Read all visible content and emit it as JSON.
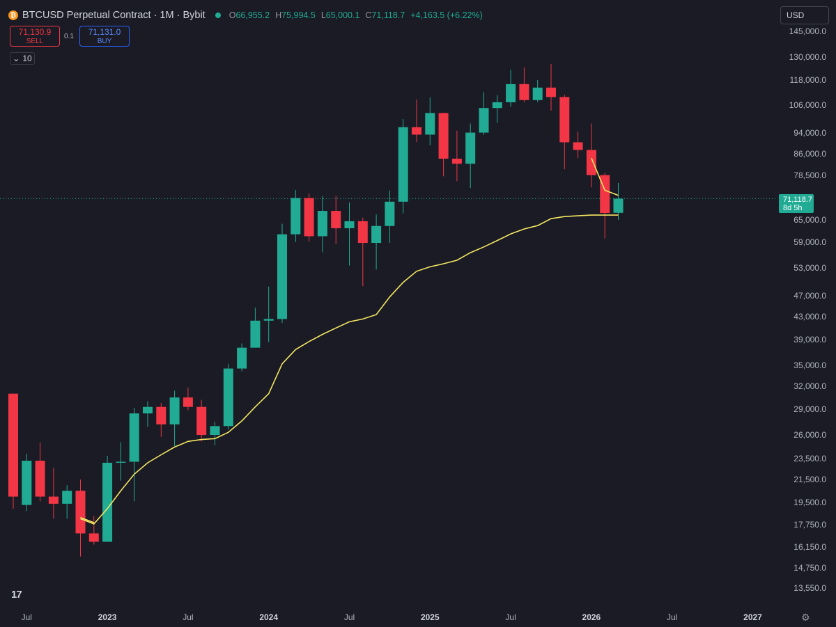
{
  "header": {
    "title": "BTCUSD Perpetual Contract · 1M · Bybit",
    "ohlc": [
      {
        "k": "O",
        "v": "66,955.2"
      },
      {
        "k": "H",
        "v": "75,994.5"
      },
      {
        "k": "L",
        "v": "65,000.1"
      },
      {
        "k": "C",
        "v": "71,118.7"
      }
    ],
    "change": "+4,163.5 (+6.22%)",
    "coin_glyph": "₿",
    "status_icon": "live-dot-icon"
  },
  "trade": {
    "sell_price": "71,130.9",
    "sell_label": "SELL",
    "spread": "0.1",
    "buy_price": "71,131.0",
    "buy_label": "BUY"
  },
  "indicators": {
    "toggle_icon": "chevron-down-icon",
    "count": "10"
  },
  "currency": "USD",
  "last_price": {
    "price": "71,118.7",
    "countdown": "8d 5h"
  },
  "logo": "17",
  "colors": {
    "up": "#22ab94",
    "down": "#f23645",
    "ma": "#f5e663",
    "bg": "#1a1b24"
  },
  "chart_data": {
    "type": "candlestick",
    "scale": "log",
    "y_ticks": [
      145000,
      130000,
      118000,
      106000,
      94000,
      86000,
      78500,
      65000,
      59000,
      53000,
      47000,
      43000,
      39000,
      35000,
      32000,
      29000,
      26000,
      23500,
      21500,
      19500,
      17750,
      16150,
      14750,
      13550
    ],
    "x_ticks": [
      {
        "label": "Jul",
        "date": "2022-07",
        "year": false
      },
      {
        "label": "2023",
        "date": "2023-01",
        "year": true
      },
      {
        "label": "Jul",
        "date": "2023-07",
        "year": false
      },
      {
        "label": "2024",
        "date": "2024-01",
        "year": true
      },
      {
        "label": "Jul",
        "date": "2024-07",
        "year": false
      },
      {
        "label": "2025",
        "date": "2025-01",
        "year": true
      },
      {
        "label": "Jul",
        "date": "2025-07",
        "year": false
      },
      {
        "label": "2026",
        "date": "2026-01",
        "year": true
      },
      {
        "label": "Jul",
        "date": "2026-07",
        "year": false
      },
      {
        "label": "2027",
        "date": "2027-01",
        "year": true
      }
    ],
    "candles": [
      {
        "d": "2022-06",
        "o": 31000,
        "h": 31000,
        "l": 19000,
        "c": 20000
      },
      {
        "d": "2022-07",
        "o": 19300,
        "h": 24000,
        "l": 18800,
        "c": 23300
      },
      {
        "d": "2022-08",
        "o": 23300,
        "h": 25200,
        "l": 19600,
        "c": 20000
      },
      {
        "d": "2022-09",
        "o": 20000,
        "h": 22600,
        "l": 18200,
        "c": 19400
      },
      {
        "d": "2022-10",
        "o": 19400,
        "h": 21000,
        "l": 18200,
        "c": 20500
      },
      {
        "d": "2022-11",
        "o": 20500,
        "h": 21500,
        "l": 15500,
        "c": 17100
      },
      {
        "d": "2022-12",
        "o": 17100,
        "h": 18400,
        "l": 16300,
        "c": 16500
      },
      {
        "d": "2023-01",
        "o": 16500,
        "h": 23800,
        "l": 16500,
        "c": 23100
      },
      {
        "d": "2023-02",
        "o": 23100,
        "h": 25200,
        "l": 21400,
        "c": 23200
      },
      {
        "d": "2023-03",
        "o": 23200,
        "h": 29200,
        "l": 19600,
        "c": 28500
      },
      {
        "d": "2023-04",
        "o": 28500,
        "h": 30000,
        "l": 26900,
        "c": 29300
      },
      {
        "d": "2023-05",
        "o": 29300,
        "h": 29800,
        "l": 25800,
        "c": 27200
      },
      {
        "d": "2023-06",
        "o": 27200,
        "h": 31400,
        "l": 24800,
        "c": 30500
      },
      {
        "d": "2023-07",
        "o": 30500,
        "h": 31800,
        "l": 28900,
        "c": 29300
      },
      {
        "d": "2023-08",
        "o": 29300,
        "h": 30200,
        "l": 25300,
        "c": 26000
      },
      {
        "d": "2023-09",
        "o": 26000,
        "h": 27500,
        "l": 24900,
        "c": 27000
      },
      {
        "d": "2023-10",
        "o": 27000,
        "h": 35200,
        "l": 26600,
        "c": 34500
      },
      {
        "d": "2023-11",
        "o": 34500,
        "h": 38400,
        "l": 34100,
        "c": 37700
      },
      {
        "d": "2023-12",
        "o": 37700,
        "h": 44700,
        "l": 37700,
        "c": 42300
      },
      {
        "d": "2024-01",
        "o": 42300,
        "h": 48900,
        "l": 38600,
        "c": 42600
      },
      {
        "d": "2024-02",
        "o": 42600,
        "h": 63900,
        "l": 41900,
        "c": 61100
      },
      {
        "d": "2024-03",
        "o": 61100,
        "h": 73800,
        "l": 59100,
        "c": 71300
      },
      {
        "d": "2024-04",
        "o": 71300,
        "h": 72700,
        "l": 59200,
        "c": 60600
      },
      {
        "d": "2024-05",
        "o": 60600,
        "h": 71900,
        "l": 56600,
        "c": 67500
      },
      {
        "d": "2024-06",
        "o": 67500,
        "h": 72000,
        "l": 58600,
        "c": 62700
      },
      {
        "d": "2024-07",
        "o": 62700,
        "h": 70000,
        "l": 53500,
        "c": 64600
      },
      {
        "d": "2024-08",
        "o": 64600,
        "h": 65600,
        "l": 49000,
        "c": 58900
      },
      {
        "d": "2024-09",
        "o": 58900,
        "h": 66500,
        "l": 52600,
        "c": 63300
      },
      {
        "d": "2024-10",
        "o": 63300,
        "h": 73600,
        "l": 58900,
        "c": 70200
      },
      {
        "d": "2024-11",
        "o": 70200,
        "h": 99800,
        "l": 66800,
        "c": 96400
      },
      {
        "d": "2024-12",
        "o": 96400,
        "h": 108400,
        "l": 90500,
        "c": 93400
      },
      {
        "d": "2025-01",
        "o": 93400,
        "h": 109400,
        "l": 89200,
        "c": 102400
      },
      {
        "d": "2025-02",
        "o": 102400,
        "h": 102500,
        "l": 78200,
        "c": 84300
      },
      {
        "d": "2025-03",
        "o": 84300,
        "h": 95000,
        "l": 76600,
        "c": 82500
      },
      {
        "d": "2025-04",
        "o": 82500,
        "h": 97900,
        "l": 74400,
        "c": 94200
      },
      {
        "d": "2025-05",
        "o": 94200,
        "h": 111900,
        "l": 93300,
        "c": 104600
      },
      {
        "d": "2025-06",
        "o": 104600,
        "h": 110500,
        "l": 98200,
        "c": 107200
      },
      {
        "d": "2025-07",
        "o": 107200,
        "h": 123200,
        "l": 105100,
        "c": 115800
      },
      {
        "d": "2025-08",
        "o": 115800,
        "h": 124400,
        "l": 107300,
        "c": 108200
      },
      {
        "d": "2025-09",
        "o": 108200,
        "h": 117900,
        "l": 107300,
        "c": 114100
      },
      {
        "d": "2025-10",
        "o": 114100,
        "h": 126200,
        "l": 103500,
        "c": 109600
      },
      {
        "d": "2025-11",
        "o": 109600,
        "h": 110600,
        "l": 80600,
        "c": 90400
      },
      {
        "d": "2025-12",
        "o": 90400,
        "h": 94600,
        "l": 84500,
        "c": 87500
      },
      {
        "d": "2026-01",
        "o": 87500,
        "h": 97900,
        "l": 74600,
        "c": 78600
      },
      {
        "d": "2026-02",
        "o": 78600,
        "h": 79300,
        "l": 60000,
        "c": 66900
      },
      {
        "d": "2026-03",
        "o": 66955.2,
        "h": 75994.5,
        "l": 65000.1,
        "c": 71118.7
      }
    ],
    "ma_series": [
      {
        "d": "2022-11",
        "v": 18200
      },
      {
        "d": "2022-12",
        "v": 17800
      },
      {
        "d": "2023-01",
        "v": 19000
      },
      {
        "d": "2023-02",
        "v": 20500
      },
      {
        "d": "2023-03",
        "v": 22000
      },
      {
        "d": "2023-04",
        "v": 23100
      },
      {
        "d": "2023-05",
        "v": 23900
      },
      {
        "d": "2023-06",
        "v": 24700
      },
      {
        "d": "2023-07",
        "v": 25300
      },
      {
        "d": "2023-08",
        "v": 25500
      },
      {
        "d": "2023-09",
        "v": 25600
      },
      {
        "d": "2023-10",
        "v": 26300
      },
      {
        "d": "2023-11",
        "v": 27600
      },
      {
        "d": "2023-12",
        "v": 29300
      },
      {
        "d": "2024-01",
        "v": 31000
      },
      {
        "d": "2024-02",
        "v": 35200
      },
      {
        "d": "2024-03",
        "v": 37400
      },
      {
        "d": "2024-04",
        "v": 38700
      },
      {
        "d": "2024-05",
        "v": 39900
      },
      {
        "d": "2024-06",
        "v": 41000
      },
      {
        "d": "2024-07",
        "v": 42100
      },
      {
        "d": "2024-08",
        "v": 42600
      },
      {
        "d": "2024-09",
        "v": 43400
      },
      {
        "d": "2024-10",
        "v": 46800
      },
      {
        "d": "2024-11",
        "v": 49800
      },
      {
        "d": "2024-12",
        "v": 52200
      },
      {
        "d": "2025-01",
        "v": 53200
      },
      {
        "d": "2025-02",
        "v": 53900
      },
      {
        "d": "2025-03",
        "v": 54700
      },
      {
        "d": "2025-04",
        "v": 56500
      },
      {
        "d": "2025-05",
        "v": 57900
      },
      {
        "d": "2025-06",
        "v": 59500
      },
      {
        "d": "2025-07",
        "v": 61200
      },
      {
        "d": "2025-08",
        "v": 62500
      },
      {
        "d": "2025-09",
        "v": 63400
      },
      {
        "d": "2025-10",
        "v": 65300
      },
      {
        "d": "2025-11",
        "v": 65900
      },
      {
        "d": "2025-12",
        "v": 66100
      },
      {
        "d": "2026-01",
        "v": 66300
      },
      {
        "d": "2026-02",
        "v": 66300
      },
      {
        "d": "2026-03",
        "v": 66300
      }
    ],
    "ma_short": [
      {
        "d": "2022-11",
        "v": 18300
      },
      {
        "d": "2022-12",
        "v": 17900
      },
      {
        "d": "2026-01",
        "v": 84500
      },
      {
        "d": "2026-02",
        "v": 73700
      },
      {
        "d": "2026-03",
        "v": 72100
      }
    ]
  }
}
